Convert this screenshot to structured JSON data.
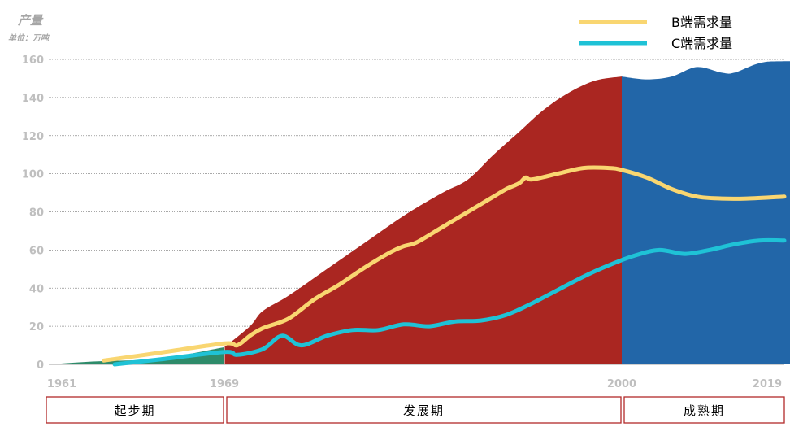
{
  "chart_data": {
    "type": "area",
    "yaxis": {
      "title": "产量",
      "unit": "单位：万吨",
      "ylim": [
        0,
        160
      ],
      "ticks": [
        "0",
        "20",
        "40",
        "60",
        "80",
        "100",
        "120",
        "140",
        "160"
      ]
    },
    "xaxis": {
      "ticks": [
        {
          "year": 1961,
          "label": "1961"
        },
        {
          "year": 1969,
          "label": "1969"
        },
        {
          "year": 2000,
          "label": "2000"
        },
        {
          "year": 2019,
          "label": "2019"
        }
      ]
    },
    "phases": [
      {
        "label": "起步期",
        "from": 1961,
        "to": 1969
      },
      {
        "label": "发展期",
        "from": 1969,
        "to": 2000
      },
      {
        "label": "成熟期",
        "from": 2000,
        "to": 2019
      }
    ],
    "area_series": [
      {
        "phase": "起步期",
        "color": "#2e8b6a",
        "points": [
          [
            1961,
            0
          ],
          [
            1963,
            1.5
          ],
          [
            1966,
            3
          ],
          [
            1969,
            9
          ]
        ]
      },
      {
        "phase": "发展期",
        "color": "#aa2621",
        "points": [
          [
            1969,
            9
          ],
          [
            1971,
            20
          ],
          [
            1972,
            28
          ],
          [
            1974,
            36
          ],
          [
            1977,
            50
          ],
          [
            1980,
            64
          ],
          [
            1983,
            78
          ],
          [
            1986,
            90
          ],
          [
            1988,
            97
          ],
          [
            1990,
            110
          ],
          [
            1992,
            122
          ],
          [
            1994,
            134
          ],
          [
            1996,
            143
          ],
          [
            1998,
            149
          ],
          [
            2000,
            151
          ]
        ]
      },
      {
        "phase": "成熟期",
        "color": "#2266a8",
        "points": [
          [
            2000,
            151
          ],
          [
            2002,
            149.5
          ],
          [
            2004,
            151
          ],
          [
            2006,
            156
          ],
          [
            2008,
            153
          ],
          [
            2009,
            153
          ],
          [
            2011,
            158
          ],
          [
            2013,
            159
          ],
          [
            2019,
            159
          ]
        ]
      }
    ],
    "series": [
      {
        "name": "B端需求量",
        "color": "#f9d671",
        "points": [
          [
            1963.5,
            2
          ],
          [
            1966,
            6
          ],
          [
            1969,
            11
          ],
          [
            1970,
            10
          ],
          [
            1971,
            15
          ],
          [
            1972,
            19
          ],
          [
            1974,
            24
          ],
          [
            1976,
            34
          ],
          [
            1978,
            42
          ],
          [
            1980,
            51
          ],
          [
            1982,
            59
          ],
          [
            1983,
            62
          ],
          [
            1984,
            64
          ],
          [
            1986,
            72
          ],
          [
            1988,
            80
          ],
          [
            1990,
            88
          ],
          [
            1991,
            92
          ],
          [
            1992,
            95
          ],
          [
            1992.5,
            98
          ],
          [
            1993,
            97
          ],
          [
            1995,
            100
          ],
          [
            1997,
            103
          ],
          [
            1999,
            103
          ],
          [
            2000,
            102
          ],
          [
            2002,
            98
          ],
          [
            2004,
            92
          ],
          [
            2006,
            88
          ],
          [
            2008,
            87
          ],
          [
            2010,
            87
          ],
          [
            2013,
            88
          ]
        ]
      },
      {
        "name": "C端需求量",
        "color": "#1fc2d6",
        "points": [
          [
            1964,
            0
          ],
          [
            1966,
            2.5
          ],
          [
            1969,
            6.5
          ],
          [
            1970,
            5
          ],
          [
            1972,
            8
          ],
          [
            1973.5,
            15
          ],
          [
            1975,
            10
          ],
          [
            1977,
            15
          ],
          [
            1979,
            18
          ],
          [
            1981,
            18
          ],
          [
            1983,
            21
          ],
          [
            1985,
            20
          ],
          [
            1987,
            22.5
          ],
          [
            1989,
            23
          ],
          [
            1991,
            26
          ],
          [
            1993,
            32
          ],
          [
            1995,
            39
          ],
          [
            1997,
            46
          ],
          [
            1999,
            52
          ],
          [
            2001,
            57
          ],
          [
            2003,
            60
          ],
          [
            2005,
            58
          ],
          [
            2007,
            60
          ],
          [
            2009,
            63
          ],
          [
            2011,
            65
          ],
          [
            2013,
            65
          ]
        ]
      }
    ]
  }
}
